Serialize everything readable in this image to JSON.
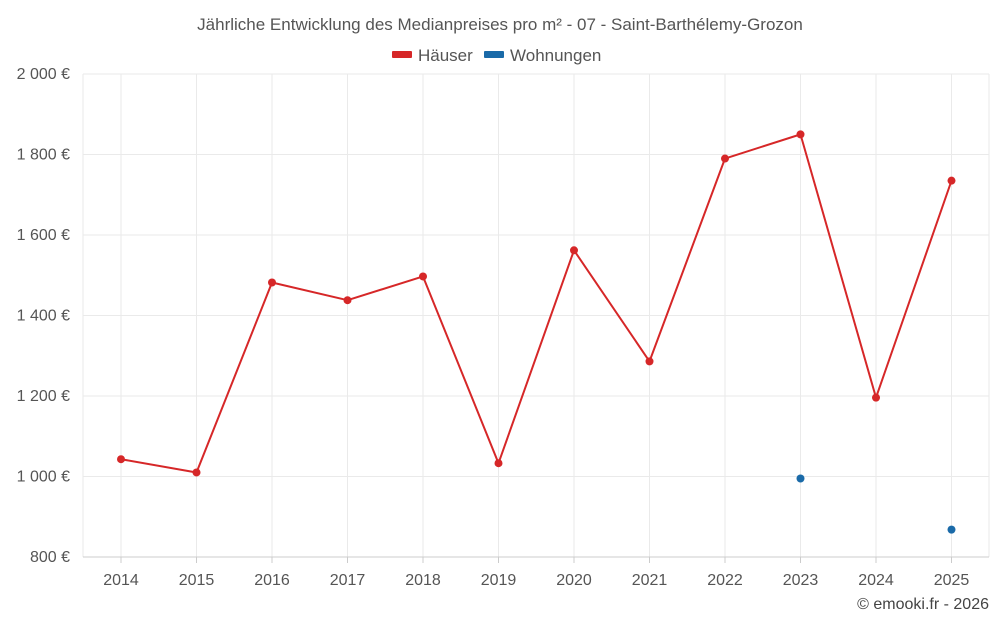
{
  "chart_data": {
    "type": "line",
    "title": "Jährliche Entwicklung des Medianpreises pro m² - 07 - Saint-Barthélemy-Grozon",
    "categories": [
      "2014",
      "2015",
      "2016",
      "2017",
      "2018",
      "2019",
      "2020",
      "2021",
      "2022",
      "2023",
      "2024",
      "2025"
    ],
    "series": [
      {
        "name": "Häuser",
        "color": "#d62728",
        "values": [
          1043,
          1010,
          1482,
          1438,
          1497,
          1033,
          1562,
          1286,
          1790,
          1850,
          1196,
          1735
        ]
      },
      {
        "name": "Wohnungen",
        "color": "#1a6aa8",
        "values": [
          null,
          null,
          null,
          null,
          null,
          null,
          null,
          null,
          null,
          995,
          null,
          868
        ]
      }
    ],
    "ylim": [
      800,
      2000
    ],
    "yticks": [
      800,
      1000,
      1200,
      1400,
      1600,
      1800,
      2000
    ],
    "ytick_labels": [
      "800 €",
      "1 000 €",
      "1 200 €",
      "1 400 €",
      "1 600 €",
      "1 800 €",
      "2 000 €"
    ],
    "xlabel": "",
    "ylabel": "",
    "grid": true,
    "legend_position": "top-center"
  },
  "credit": "© emooki.fr - 2026"
}
